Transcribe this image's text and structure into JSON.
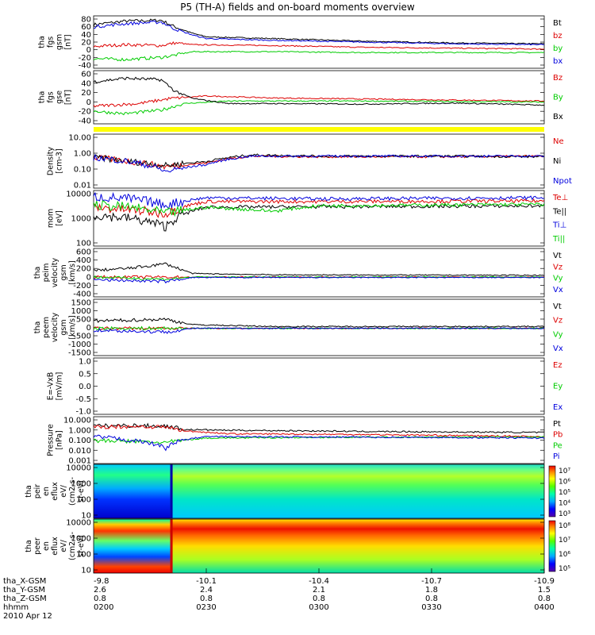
{
  "title": "P5 (TH-A) fields and on-board moments overview",
  "x_axis": {
    "ticks": [
      "-9.8",
      "-10.1",
      "-10.4",
      "-10.7",
      "-10.9"
    ],
    "rows": [
      {
        "label": "tha_X-GSM",
        "values": [
          "-9.8",
          "-10.1",
          "-10.4",
          "-10.7",
          "-10.9"
        ]
      },
      {
        "label": "tha_Y-GSM",
        "values": [
          "2.6",
          "2.4",
          "2.1",
          "1.8",
          "1.5"
        ]
      },
      {
        "label": "tha_Z-GSM",
        "values": [
          "0.8",
          "0.8",
          "0.8",
          "0.8",
          "0.8"
        ]
      },
      {
        "label": "hhmm",
        "values": [
          "0200",
          "0230",
          "0300",
          "0330",
          "0400"
        ]
      }
    ],
    "date": "2010 Apr 12"
  },
  "colors": {
    "black": "#000000",
    "red": "#dd0000",
    "green": "#00cc00",
    "blue": "#0000dd",
    "yellow": "#ffff00"
  },
  "chart_data": [
    {
      "id": "p1",
      "type": "line",
      "ylabel": [
        "tha",
        "fgs",
        "gsm",
        "[nT]"
      ],
      "yticks": [
        "80",
        "60",
        "40",
        "20",
        "0",
        "-20",
        "-40"
      ],
      "ylim": [
        -40,
        80
      ],
      "scale": "linear",
      "series": [
        {
          "name": "Bt",
          "color": "#000000",
          "profile": [
            [
              0,
              60
            ],
            [
              0.07,
              68
            ],
            [
              0.15,
              70
            ],
            [
              0.18,
              55
            ],
            [
              0.22,
              40
            ],
            [
              0.25,
              32
            ],
            [
              0.4,
              28
            ],
            [
              0.6,
              22
            ],
            [
              0.8,
              18
            ],
            [
              1,
              16
            ]
          ]
        },
        {
          "name": "bz",
          "color": "#dd0000",
          "profile": [
            [
              0,
              10
            ],
            [
              0.07,
              14
            ],
            [
              0.15,
              12
            ],
            [
              0.18,
              18
            ],
            [
              0.22,
              14
            ],
            [
              0.4,
              12
            ],
            [
              0.6,
              8
            ],
            [
              0.8,
              6
            ],
            [
              1,
              4
            ]
          ]
        },
        {
          "name": "by",
          "color": "#00cc00",
          "profile": [
            [
              0,
              -18
            ],
            [
              0.07,
              -20
            ],
            [
              0.15,
              -15
            ],
            [
              0.18,
              -10
            ],
            [
              0.22,
              -2
            ],
            [
              0.4,
              -2
            ],
            [
              0.6,
              -4
            ],
            [
              0.8,
              -4
            ],
            [
              1,
              -4
            ]
          ]
        },
        {
          "name": "bx",
          "color": "#0000dd",
          "profile": [
            [
              0,
              55
            ],
            [
              0.07,
              62
            ],
            [
              0.15,
              66
            ],
            [
              0.18,
              50
            ],
            [
              0.22,
              36
            ],
            [
              0.25,
              28
            ],
            [
              0.4,
              24
            ],
            [
              0.6,
              20
            ],
            [
              0.8,
              16
            ],
            [
              1,
              14
            ]
          ]
        }
      ]
    },
    {
      "id": "p2",
      "type": "line",
      "ylabel": [
        "tha",
        "fgs",
        "gse",
        "[nT]"
      ],
      "yticks": [
        "60",
        "40",
        "20",
        "0",
        "-20",
        "-40"
      ],
      "ylim": [
        -45,
        60
      ],
      "scale": "linear",
      "series": [
        {
          "name": "Bz",
          "color": "#dd0000",
          "profile": [
            [
              0,
              -10
            ],
            [
              0.1,
              -5
            ],
            [
              0.17,
              5
            ],
            [
              0.25,
              10
            ],
            [
              0.4,
              6
            ],
            [
              0.6,
              4
            ],
            [
              0.8,
              2
            ],
            [
              1,
              0
            ]
          ]
        },
        {
          "name": "By",
          "color": "#00cc00",
          "profile": [
            [
              0,
              -20
            ],
            [
              0.07,
              -25
            ],
            [
              0.15,
              -18
            ],
            [
              0.2,
              -5
            ],
            [
              0.3,
              0
            ],
            [
              0.6,
              0
            ],
            [
              1,
              -2
            ]
          ]
        },
        {
          "name": "Bx",
          "color": "#000000",
          "profile": [
            [
              0,
              38
            ],
            [
              0.07,
              45
            ],
            [
              0.15,
              42
            ],
            [
              0.18,
              20
            ],
            [
              0.22,
              5
            ],
            [
              0.3,
              -5
            ],
            [
              0.4,
              -5
            ],
            [
              0.6,
              -6
            ],
            [
              0.8,
              -4
            ],
            [
              1,
              -8
            ]
          ]
        }
      ]
    },
    {
      "id": "p3",
      "type": "line",
      "ylabel": [
        "Density",
        "[cm-3]"
      ],
      "yticks": [
        "10.00",
        "1.00",
        "0.10",
        "0.01"
      ],
      "ylim": [
        0.01,
        10
      ],
      "scale": "log",
      "series": [
        {
          "name": "Ne",
          "color": "#dd0000",
          "profile": [
            [
              0,
              0.5
            ],
            [
              0.08,
              0.3
            ],
            [
              0.16,
              0.15
            ],
            [
              0.25,
              0.25
            ],
            [
              0.35,
              0.6
            ],
            [
              0.5,
              0.55
            ],
            [
              0.8,
              0.55
            ],
            [
              1,
              0.6
            ]
          ]
        },
        {
          "name": "Ni",
          "color": "#000000",
          "profile": [
            [
              0,
              0.5
            ],
            [
              0.08,
              0.3
            ],
            [
              0.16,
              0.18
            ],
            [
              0.25,
              0.3
            ],
            [
              0.35,
              0.7
            ],
            [
              0.5,
              0.6
            ],
            [
              0.8,
              0.6
            ],
            [
              1,
              0.55
            ]
          ]
        },
        {
          "name": "Npot",
          "color": "#0000dd",
          "profile": [
            [
              0,
              0.5
            ],
            [
              0.16,
              0.08
            ],
            [
              0.25,
              0.2
            ],
            [
              0.35,
              0.6
            ],
            [
              1,
              0.6
            ]
          ]
        }
      ]
    },
    {
      "id": "p4",
      "type": "line",
      "ylabel": [
        "mom",
        "[eV]"
      ],
      "yticks": [
        "10000",
        "1000",
        "100"
      ],
      "ylim": [
        100,
        10000
      ],
      "scale": "log",
      "series": [
        {
          "name": "Te⊥",
          "color": "#dd0000",
          "profile": [
            [
              0,
              2500
            ],
            [
              0.08,
              2000
            ],
            [
              0.16,
              1500
            ],
            [
              0.25,
              4000
            ],
            [
              0.5,
              4000
            ],
            [
              1,
              4200
            ]
          ]
        },
        {
          "name": "Te||",
          "color": "#000000",
          "profile": [
            [
              0,
              1300
            ],
            [
              0.08,
              1000
            ],
            [
              0.16,
              500
            ],
            [
              0.25,
              2500
            ],
            [
              0.5,
              2600
            ],
            [
              1,
              2800
            ]
          ]
        },
        {
          "name": "Ti⊥",
          "color": "#0000dd",
          "profile": [
            [
              0,
              6000
            ],
            [
              0.08,
              5000
            ],
            [
              0.16,
              3000
            ],
            [
              0.25,
              5500
            ],
            [
              0.5,
              5000
            ],
            [
              1,
              5500
            ]
          ]
        },
        {
          "name": "Ti||",
          "color": "#00cc00",
          "profile": [
            [
              0,
              3000
            ],
            [
              0.08,
              2500
            ],
            [
              0.16,
              1500
            ],
            [
              0.25,
              2500
            ],
            [
              0.4,
              1800
            ],
            [
              0.5,
              2800
            ],
            [
              1,
              3200
            ]
          ]
        }
      ]
    },
    {
      "id": "p5",
      "type": "line",
      "ylabel": [
        "tha",
        "peim",
        "velocity",
        "gsm",
        "[km/s]"
      ],
      "yticks": [
        "600",
        "400",
        "200",
        "0",
        "-200",
        "-400"
      ],
      "ylim": [
        -450,
        650
      ],
      "scale": "linear",
      "series": [
        {
          "name": "Vt",
          "color": "#000000",
          "profile": [
            [
              0,
              150
            ],
            [
              0.08,
              200
            ],
            [
              0.16,
              300
            ],
            [
              0.22,
              80
            ],
            [
              0.4,
              50
            ],
            [
              1,
              40
            ]
          ]
        },
        {
          "name": "Vz",
          "color": "#dd0000",
          "profile": [
            [
              0,
              0
            ],
            [
              0.16,
              0
            ],
            [
              0.22,
              0
            ],
            [
              1,
              0
            ]
          ]
        },
        {
          "name": "Vy",
          "color": "#00cc00",
          "profile": [
            [
              0,
              0
            ],
            [
              0.16,
              -50
            ],
            [
              0.22,
              0
            ],
            [
              1,
              0
            ]
          ]
        },
        {
          "name": "Vx",
          "color": "#0000dd",
          "profile": [
            [
              0,
              -60
            ],
            [
              0.08,
              -80
            ],
            [
              0.16,
              -100
            ],
            [
              0.22,
              -10
            ],
            [
              1,
              -10
            ]
          ]
        }
      ]
    },
    {
      "id": "p6",
      "type": "line",
      "ylabel": [
        "tha",
        "peem",
        "velocity",
        "gsm",
        "[km/s]"
      ],
      "yticks": [
        "1500",
        "1000",
        "500",
        "0",
        "-500",
        "-1000",
        "-1500"
      ],
      "ylim": [
        -1500,
        1600
      ],
      "scale": "linear",
      "series": [
        {
          "name": "Vt",
          "color": "#000000",
          "profile": [
            [
              0,
              400
            ],
            [
              0.16,
              500
            ],
            [
              0.22,
              200
            ],
            [
              0.4,
              100
            ],
            [
              1,
              100
            ]
          ]
        },
        {
          "name": "Vz",
          "color": "#dd0000",
          "profile": [
            [
              0,
              0
            ],
            [
              1,
              0
            ]
          ]
        },
        {
          "name": "Vy",
          "color": "#00cc00",
          "profile": [
            [
              0,
              0
            ],
            [
              1,
              0
            ]
          ]
        },
        {
          "name": "Vx",
          "color": "#0000dd",
          "profile": [
            [
              0,
              -100
            ],
            [
              0.16,
              -200
            ],
            [
              0.22,
              0
            ],
            [
              1,
              0
            ]
          ]
        }
      ]
    },
    {
      "id": "p7",
      "type": "line",
      "ylabel": [
        "E=-VxB",
        "[mV/m]"
      ],
      "yticks": [
        "1.0",
        "0.5",
        "0.0",
        "-0.5",
        "-1.0"
      ],
      "ylim": [
        -1,
        1
      ],
      "scale": "linear",
      "series": [
        {
          "name": "Ez",
          "color": "#dd0000",
          "profile": []
        },
        {
          "name": "Ey",
          "color": "#00cc00",
          "profile": []
        },
        {
          "name": "Ex",
          "color": "#0000dd",
          "profile": []
        }
      ]
    },
    {
      "id": "p8",
      "type": "line",
      "ylabel": [
        "Pressure",
        "[nPa]"
      ],
      "yticks": [
        "10.000",
        "1.000",
        "0.100",
        "0.010",
        "0.001"
      ],
      "ylim": [
        0.001,
        10
      ],
      "scale": "log",
      "series": [
        {
          "name": "Pt",
          "color": "#000000",
          "profile": [
            [
              0,
              1.6
            ],
            [
              0.08,
              1.8
            ],
            [
              0.16,
              1.6
            ],
            [
              0.2,
              0.8
            ],
            [
              0.3,
              0.7
            ],
            [
              0.6,
              0.55
            ],
            [
              1,
              0.45
            ]
          ]
        },
        {
          "name": "Pb",
          "color": "#dd0000",
          "profile": [
            [
              0,
              1.3
            ],
            [
              0.08,
              1.5
            ],
            [
              0.16,
              1.3
            ],
            [
              0.2,
              0.6
            ],
            [
              0.3,
              0.35
            ],
            [
              0.6,
              0.3
            ],
            [
              1,
              0.2
            ]
          ]
        },
        {
          "name": "Pe",
          "color": "#00cc00",
          "profile": [
            [
              0,
              0.09
            ],
            [
              0.08,
              0.08
            ],
            [
              0.16,
              0.06
            ],
            [
              0.25,
              0.15
            ],
            [
              0.6,
              0.18
            ],
            [
              1,
              0.18
            ]
          ]
        },
        {
          "name": "Pi",
          "color": "#0000dd",
          "profile": [
            [
              0,
              0.2
            ],
            [
              0.08,
              0.1
            ],
            [
              0.16,
              0.02
            ],
            [
              0.25,
              0.2
            ],
            [
              0.6,
              0.18
            ],
            [
              1,
              0.15
            ]
          ]
        }
      ]
    },
    {
      "id": "p9",
      "type": "heatmap",
      "ylabel": [
        "tha",
        "peir",
        "en",
        "eflux",
        "eV/",
        "(cm2-s-",
        "sr-eV)"
      ],
      "yticks": [
        "10000",
        "1000",
        "100",
        "10"
      ],
      "ylim": [
        10,
        25000
      ],
      "scale": "log",
      "colorbar": {
        "ticks": [
          "10⁷",
          "10⁶",
          "10⁵",
          "10⁴",
          "10³"
        ]
      }
    },
    {
      "id": "p10",
      "type": "heatmap",
      "ylabel": [
        "tha",
        "peer",
        "en",
        "eflux",
        "eV/",
        "(cm2-s-",
        "sr-eV)"
      ],
      "yticks": [
        "10000",
        "1000",
        "100",
        "10"
      ],
      "ylim": [
        8,
        25000
      ],
      "scale": "log",
      "colorbar": {
        "ticks": [
          "10⁸",
          "10⁷",
          "10⁶",
          "10⁵"
        ]
      }
    }
  ]
}
